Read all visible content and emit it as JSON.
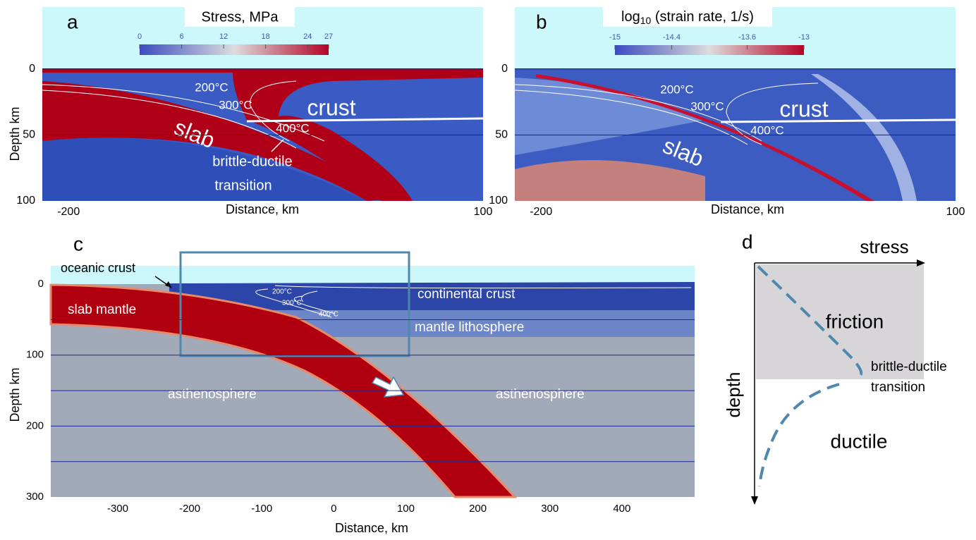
{
  "panels": {
    "a": {
      "letter": "a",
      "colorbar": {
        "title": "Stress, MPa",
        "lim": [
          0,
          27
        ],
        "ticks": [
          0,
          6,
          12,
          18,
          24,
          27
        ]
      },
      "ylabel": "Depth km",
      "ylim": [
        -47,
        100
      ],
      "yticks": [
        0,
        50,
        100
      ],
      "grid": [
        0,
        50
      ],
      "xlabel": "Distance, km",
      "xlim": [
        -219,
        100
      ],
      "xticks": [
        -200,
        100
      ],
      "isotherms": [
        "200°C",
        "300°C",
        "400°C"
      ],
      "crust": "crust",
      "slab": "slab",
      "transition": [
        "brittle-ductile",
        "transition"
      ]
    },
    "b": {
      "letter": "b",
      "colorbar": {
        "title": {
          "log": "log",
          "base": "10",
          "rest": " (strain rate, 1/s)"
        },
        "lim": [
          -15,
          -13
        ],
        "ticks": [
          -15,
          -14.4,
          -13.6,
          -13
        ]
      },
      "ylabel": "Depth km",
      "ylim": [
        -47,
        100
      ],
      "yticks": [
        0,
        50,
        100
      ],
      "grid": [
        0,
        50
      ],
      "xlabel": "Distance, km",
      "xlim": [
        -219,
        100
      ],
      "xticks": [
        -200,
        100
      ],
      "isotherms": [
        "200°C",
        "300°C",
        "400°C"
      ],
      "crust": "crust",
      "slab": "slab"
    },
    "c": {
      "letter": "c",
      "ylabel": "Depth km",
      "ylim": [
        -26,
        300
      ],
      "yticks": [
        0,
        100,
        200,
        300
      ],
      "grid": [
        50,
        100,
        150,
        200,
        250
      ],
      "xlabel": "Distance, km",
      "xlim": [
        -393,
        501
      ],
      "xticks": [
        -300,
        -200,
        -100,
        0,
        100,
        200,
        300,
        400
      ],
      "isotherms": [
        "200°C",
        "300°C",
        "400°C"
      ],
      "regions": {
        "oceanic_crust": "oceanic crust",
        "slab_mantle": "slab mantle",
        "continental_crust": "continental crust",
        "mantle_lithosphere": "mantle lithosphere",
        "asthenosphere": [
          "asthenosphere",
          "asthenosphere"
        ]
      }
    },
    "d": {
      "letter": "d",
      "x_axis": "stress",
      "y_axis": "depth",
      "friction": "friction",
      "transition": [
        "brittle-ductile",
        "transition"
      ],
      "ductile": "ductile"
    }
  }
}
